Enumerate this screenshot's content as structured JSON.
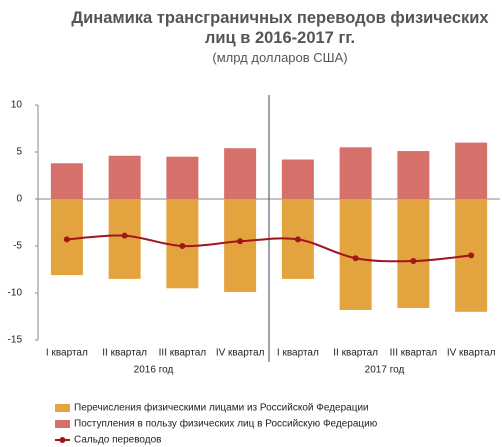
{
  "chart_data": {
    "type": "bar",
    "title": "Динамика трансграничных переводов физических лиц в 2016-2017 гг.",
    "subtitle": "(млрд долларов США)",
    "categories": [
      "I квартал",
      "II квартал",
      "III квартал",
      "IV квартал",
      "I квартал",
      "II квартал",
      "III квартал",
      "IV квартал"
    ],
    "groups": [
      "2016 год",
      "2017 год"
    ],
    "series": [
      {
        "name": "Перечисления физическими лицами из Российской Федерации",
        "color": "#e3a33e",
        "type": "bar",
        "values": [
          -8.1,
          -8.5,
          -9.5,
          -9.9,
          -8.5,
          -11.8,
          -11.6,
          -12.0
        ]
      },
      {
        "name": "Поступления в пользу физических лиц в Российскую Федерацию",
        "color": "#d6706a",
        "type": "bar",
        "values": [
          3.8,
          4.6,
          4.5,
          5.4,
          4.2,
          5.5,
          5.1,
          6.0
        ]
      },
      {
        "name": "Сальдо переводов",
        "color": "#a0151e",
        "type": "line",
        "values": [
          -4.3,
          -3.9,
          -5.0,
          -4.5,
          -4.3,
          -6.3,
          -6.6,
          -6.0
        ]
      }
    ],
    "ylim": [
      -15,
      10
    ],
    "yticks": [
      10,
      5,
      0,
      -5,
      -10,
      -15
    ]
  }
}
